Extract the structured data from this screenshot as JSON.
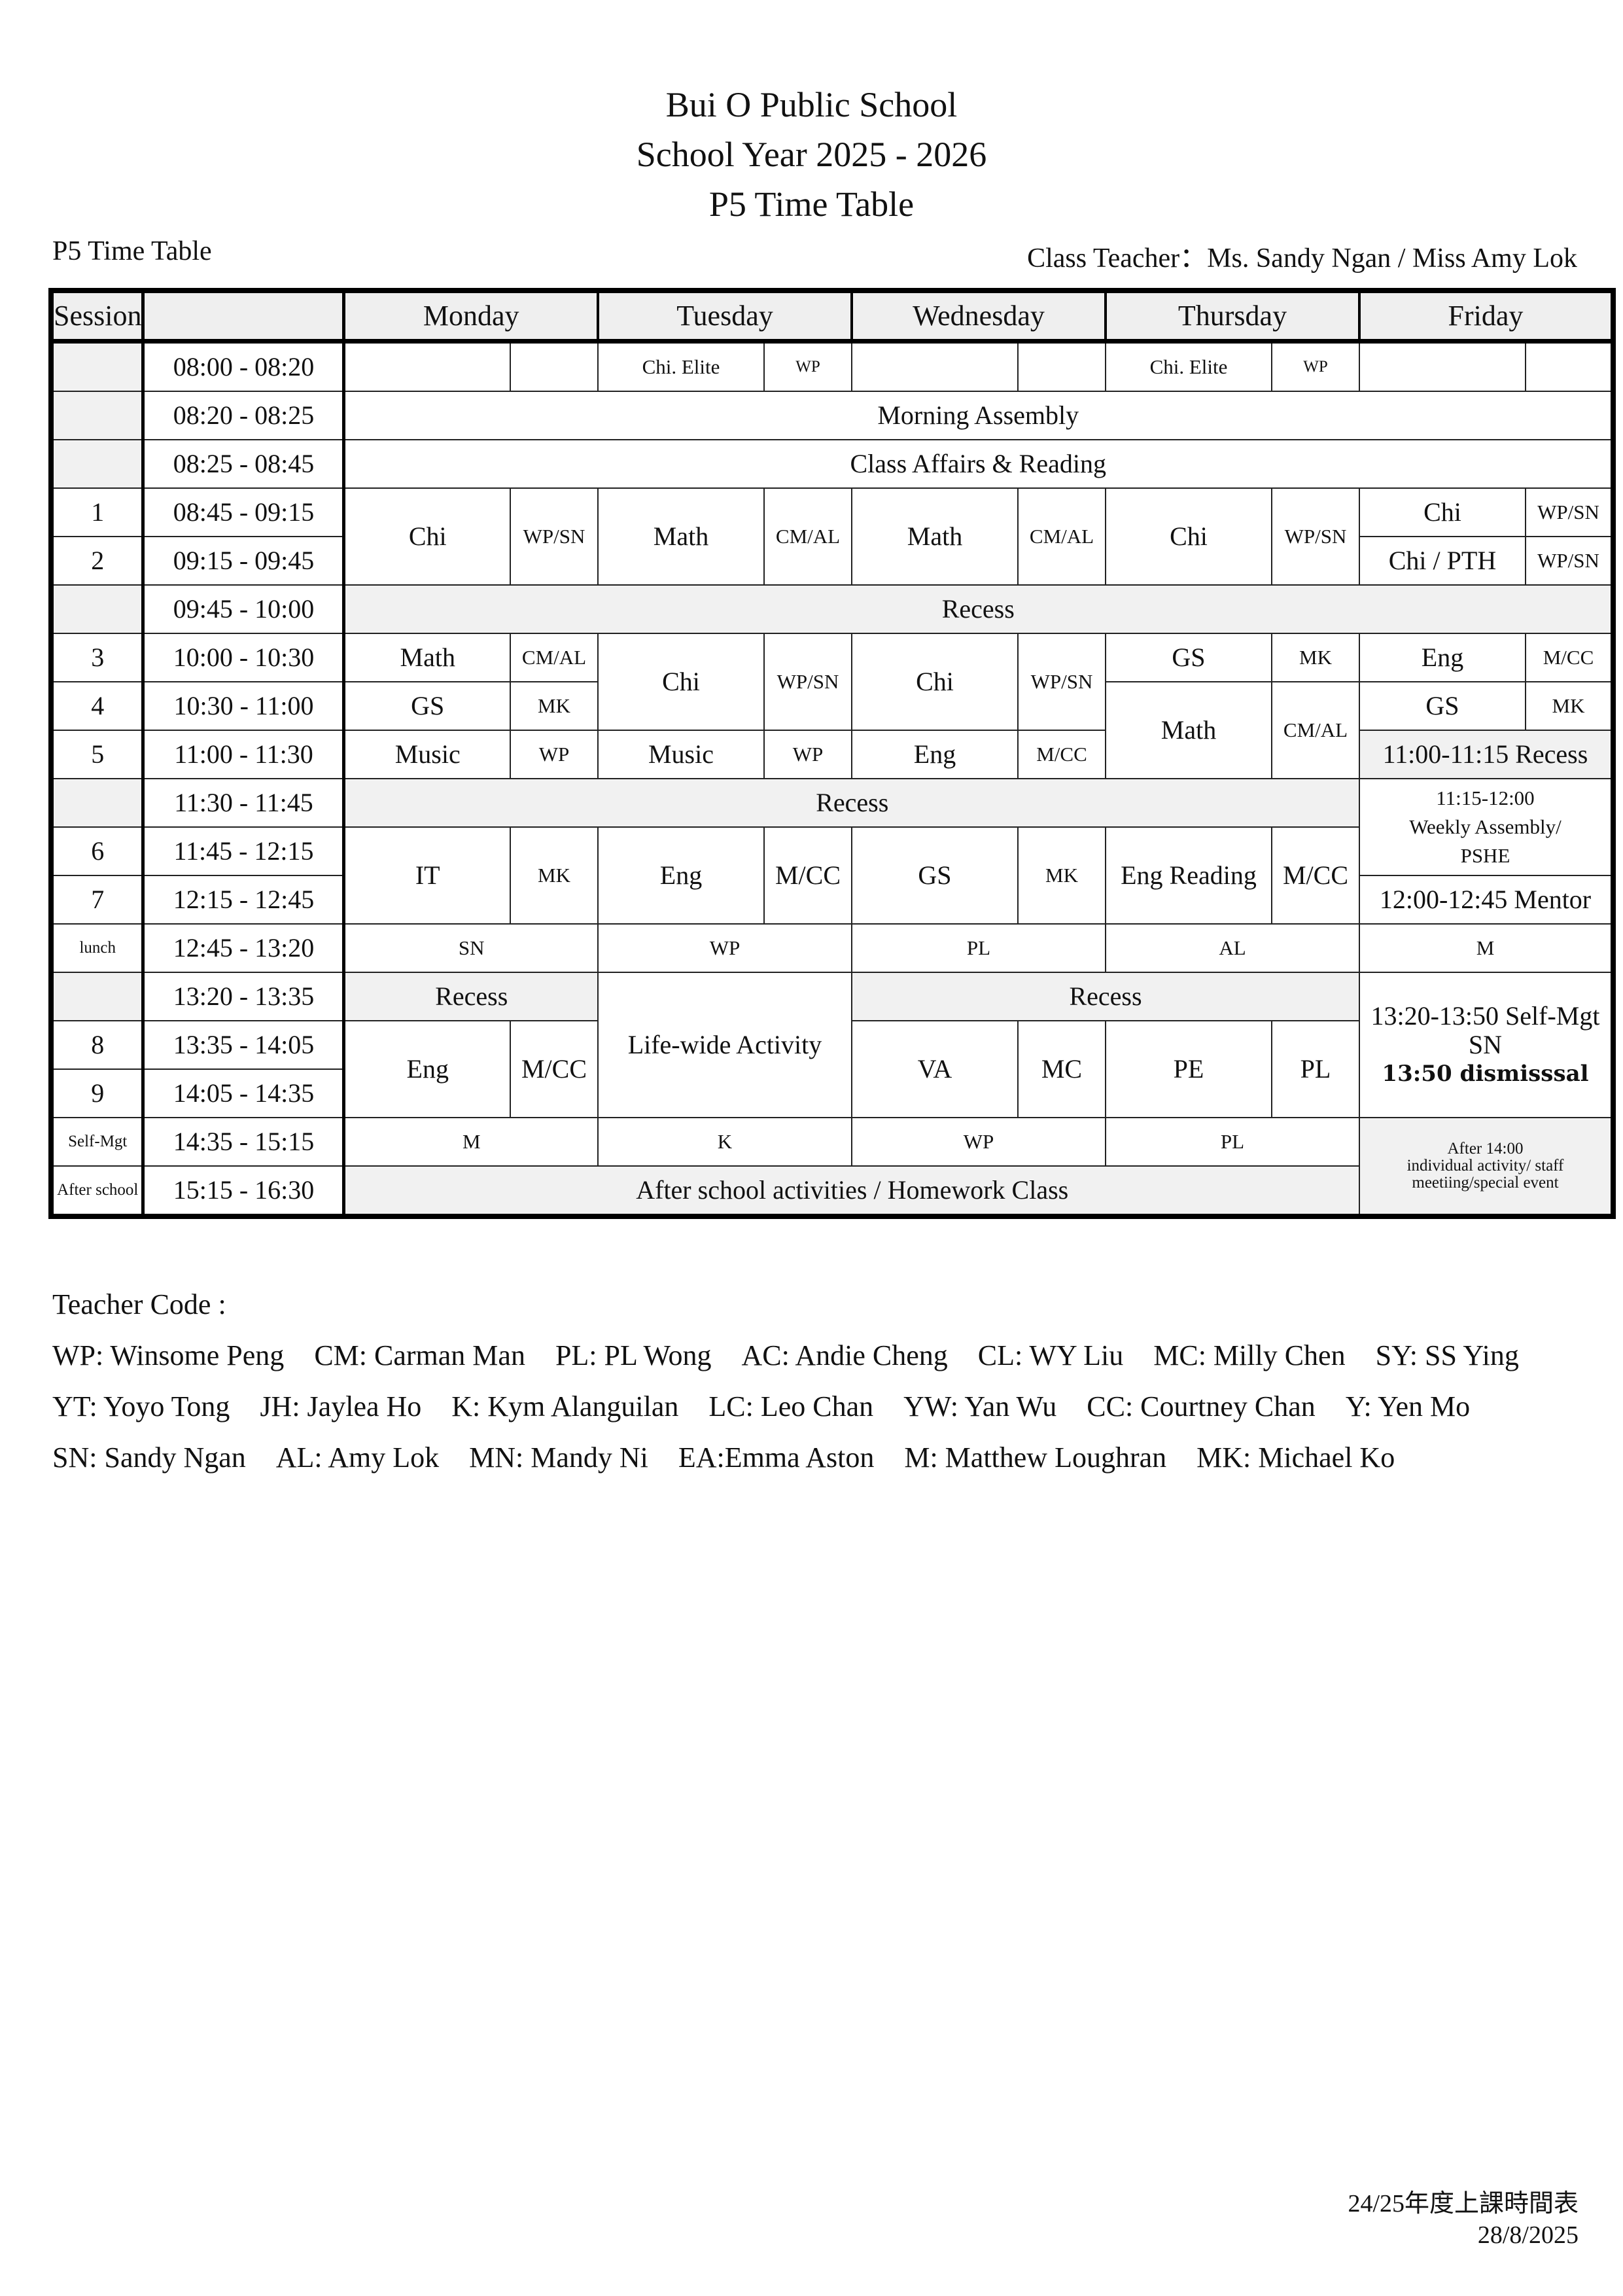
{
  "header": {
    "school": "Bui O Public School",
    "year": "School Year 2025 - 2026",
    "title": "P5 Time Table"
  },
  "subheader": {
    "left": "P5 Time Table",
    "right": "Class Teacher：Ms. Sandy Ngan / Miss Amy Lok"
  },
  "table": {
    "session_header": "Session",
    "days": [
      "Monday",
      "Tuesday",
      "Wednesday",
      "Thursday",
      "Friday"
    ],
    "rows": [
      {
        "session": "",
        "time": "08:00 - 08:20",
        "cells": [
          "",
          "",
          "Chi. Elite",
          "WP",
          "",
          "",
          "Chi. Elite",
          "WP",
          "",
          ""
        ]
      },
      {
        "session": "",
        "time": "08:20 - 08:25",
        "cells": [
          "Morning Assembly"
        ]
      },
      {
        "session": "",
        "time": "08:25 - 08:45",
        "cells": [
          "Class Affairs & Reading"
        ]
      },
      {
        "session": "1",
        "time": "08:45 - 09:15",
        "cells": [
          "Chi",
          "WP/SN",
          "Math",
          "CM/AL",
          "Math",
          "CM/AL",
          "Chi",
          "WP/SN",
          "Chi",
          "WP/SN"
        ]
      },
      {
        "session": "2",
        "time": "09:15 - 09:45",
        "cells": [
          "Chi / PTH",
          "WP/SN"
        ]
      },
      {
        "session": "",
        "time": "09:45 - 10:00",
        "cells": [
          "Recess"
        ]
      },
      {
        "session": "3",
        "time": "10:00 - 10:30",
        "cells": [
          "Math",
          "CM/AL",
          "Chi",
          "WP/SN",
          "Chi",
          "WP/SN",
          "GS",
          "MK",
          "Eng",
          "M/CC"
        ]
      },
      {
        "session": "4",
        "time": "10:30 - 11:00",
        "cells": [
          "GS",
          "MK",
          "Math",
          "CM/AL",
          "GS",
          "MK"
        ]
      },
      {
        "session": "5",
        "time": "11:00 - 11:30",
        "cells": [
          "Music",
          "WP",
          "Music",
          "WP",
          "Eng",
          "M/CC",
          "11:00-11:15 Recess"
        ]
      },
      {
        "session": "",
        "time": "11:30 - 11:45",
        "cells": [
          "Recess",
          [
            "11:15-12:00",
            "Weekly Assembly/",
            "PSHE"
          ]
        ]
      },
      {
        "session": "6",
        "time": "11:45 - 12:15",
        "cells": [
          "IT",
          "MK",
          "Eng",
          "M/CC",
          "GS",
          "MK",
          "Eng Reading",
          "M/CC"
        ]
      },
      {
        "session": "7",
        "time": "12:15 - 12:45",
        "cells": [
          "12:00-12:45 Mentor"
        ]
      },
      {
        "session": "lunch",
        "time": "12:45 - 13:20",
        "cells": [
          "SN",
          "WP",
          "PL",
          "AL",
          "M"
        ]
      },
      {
        "session": "",
        "time": "13:20 - 13:35",
        "cells": [
          "Recess",
          "Life-wide Activity",
          "Recess",
          [
            "13:20-13:50 Self-Mgt",
            "SN",
            "13:50 dismisssal"
          ]
        ]
      },
      {
        "session": "8",
        "time": "13:35 - 14:05",
        "cells": [
          "Eng",
          "M/CC",
          "VA",
          "MC",
          "PE",
          "PL"
        ]
      },
      {
        "session": "9",
        "time": "14:05 - 14:35",
        "cells": []
      },
      {
        "session": "Self-Mgt",
        "time": "14:35 - 15:15",
        "cells": [
          "M",
          "K",
          "WP",
          "PL",
          [
            "After 14:00",
            "individual activity/ staff",
            "meetiing/special event"
          ]
        ]
      },
      {
        "session": "After school",
        "time": "15:15 - 16:30",
        "cells": [
          "After school activities / Homework Class"
        ]
      }
    ]
  },
  "teacher_codes": {
    "label": "Teacher Code :",
    "lines": [
      [
        "WP: Winsome Peng",
        "CM: Carman Man",
        "PL: PL Wong",
        "AC: Andie Cheng",
        "CL: WY Liu",
        "MC: Milly Chen",
        "SY: SS Ying"
      ],
      [
        "YT: Yoyo Tong",
        "JH: Jaylea Ho",
        "K: Kym Alanguilan",
        "LC: Leo Chan",
        "YW: Yan Wu",
        "CC: Courtney Chan",
        "Y: Yen Mo"
      ],
      [
        "SN: Sandy Ngan",
        "AL: Amy Lok",
        "MN: Mandy Ni",
        "EA:Emma Aston",
        "M: Matthew Loughran",
        "MK: Michael Ko"
      ]
    ]
  },
  "footer": {
    "doc_title": "24/25年度上課時間表",
    "date": "28/8/2025"
  }
}
